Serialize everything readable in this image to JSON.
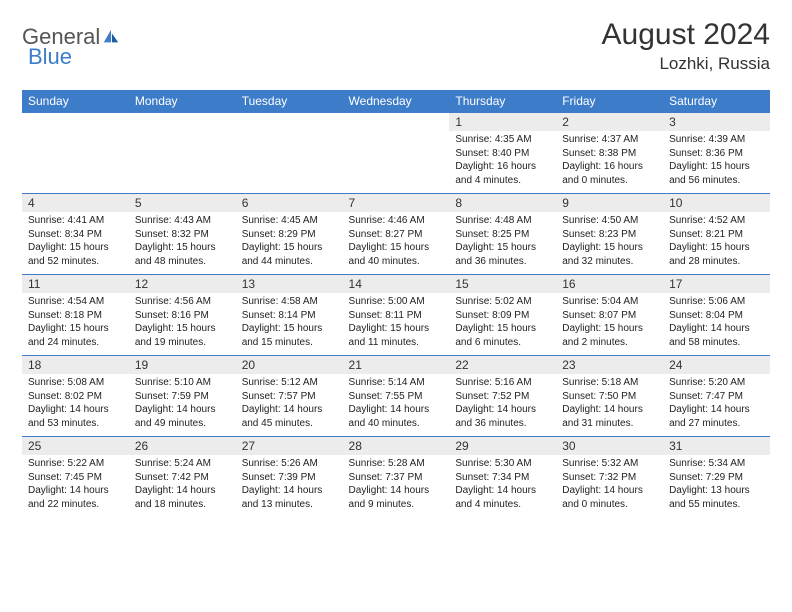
{
  "brand": {
    "name1": "General",
    "name2": "Blue"
  },
  "title": "August 2024",
  "location": "Lozhki, Russia",
  "colors": {
    "header_bg": "#3d7cc9",
    "header_text": "#ffffff",
    "daynum_bg": "#ececec",
    "border": "#3d7cc9",
    "text": "#222222",
    "brand_gray": "#555555",
    "brand_blue": "#3d7cc9"
  },
  "fonts": {
    "title_size": 30,
    "location_size": 17,
    "header_size": 12,
    "body_size": 10
  },
  "day_headers": [
    "Sunday",
    "Monday",
    "Tuesday",
    "Wednesday",
    "Thursday",
    "Friday",
    "Saturday"
  ],
  "weeks": [
    [
      null,
      null,
      null,
      null,
      {
        "n": "1",
        "sr": "Sunrise: 4:35 AM",
        "ss": "Sunset: 8:40 PM",
        "dl": "Daylight: 16 hours and 4 minutes."
      },
      {
        "n": "2",
        "sr": "Sunrise: 4:37 AM",
        "ss": "Sunset: 8:38 PM",
        "dl": "Daylight: 16 hours and 0 minutes."
      },
      {
        "n": "3",
        "sr": "Sunrise: 4:39 AM",
        "ss": "Sunset: 8:36 PM",
        "dl": "Daylight: 15 hours and 56 minutes."
      }
    ],
    [
      {
        "n": "4",
        "sr": "Sunrise: 4:41 AM",
        "ss": "Sunset: 8:34 PM",
        "dl": "Daylight: 15 hours and 52 minutes."
      },
      {
        "n": "5",
        "sr": "Sunrise: 4:43 AM",
        "ss": "Sunset: 8:32 PM",
        "dl": "Daylight: 15 hours and 48 minutes."
      },
      {
        "n": "6",
        "sr": "Sunrise: 4:45 AM",
        "ss": "Sunset: 8:29 PM",
        "dl": "Daylight: 15 hours and 44 minutes."
      },
      {
        "n": "7",
        "sr": "Sunrise: 4:46 AM",
        "ss": "Sunset: 8:27 PM",
        "dl": "Daylight: 15 hours and 40 minutes."
      },
      {
        "n": "8",
        "sr": "Sunrise: 4:48 AM",
        "ss": "Sunset: 8:25 PM",
        "dl": "Daylight: 15 hours and 36 minutes."
      },
      {
        "n": "9",
        "sr": "Sunrise: 4:50 AM",
        "ss": "Sunset: 8:23 PM",
        "dl": "Daylight: 15 hours and 32 minutes."
      },
      {
        "n": "10",
        "sr": "Sunrise: 4:52 AM",
        "ss": "Sunset: 8:21 PM",
        "dl": "Daylight: 15 hours and 28 minutes."
      }
    ],
    [
      {
        "n": "11",
        "sr": "Sunrise: 4:54 AM",
        "ss": "Sunset: 8:18 PM",
        "dl": "Daylight: 15 hours and 24 minutes."
      },
      {
        "n": "12",
        "sr": "Sunrise: 4:56 AM",
        "ss": "Sunset: 8:16 PM",
        "dl": "Daylight: 15 hours and 19 minutes."
      },
      {
        "n": "13",
        "sr": "Sunrise: 4:58 AM",
        "ss": "Sunset: 8:14 PM",
        "dl": "Daylight: 15 hours and 15 minutes."
      },
      {
        "n": "14",
        "sr": "Sunrise: 5:00 AM",
        "ss": "Sunset: 8:11 PM",
        "dl": "Daylight: 15 hours and 11 minutes."
      },
      {
        "n": "15",
        "sr": "Sunrise: 5:02 AM",
        "ss": "Sunset: 8:09 PM",
        "dl": "Daylight: 15 hours and 6 minutes."
      },
      {
        "n": "16",
        "sr": "Sunrise: 5:04 AM",
        "ss": "Sunset: 8:07 PM",
        "dl": "Daylight: 15 hours and 2 minutes."
      },
      {
        "n": "17",
        "sr": "Sunrise: 5:06 AM",
        "ss": "Sunset: 8:04 PM",
        "dl": "Daylight: 14 hours and 58 minutes."
      }
    ],
    [
      {
        "n": "18",
        "sr": "Sunrise: 5:08 AM",
        "ss": "Sunset: 8:02 PM",
        "dl": "Daylight: 14 hours and 53 minutes."
      },
      {
        "n": "19",
        "sr": "Sunrise: 5:10 AM",
        "ss": "Sunset: 7:59 PM",
        "dl": "Daylight: 14 hours and 49 minutes."
      },
      {
        "n": "20",
        "sr": "Sunrise: 5:12 AM",
        "ss": "Sunset: 7:57 PM",
        "dl": "Daylight: 14 hours and 45 minutes."
      },
      {
        "n": "21",
        "sr": "Sunrise: 5:14 AM",
        "ss": "Sunset: 7:55 PM",
        "dl": "Daylight: 14 hours and 40 minutes."
      },
      {
        "n": "22",
        "sr": "Sunrise: 5:16 AM",
        "ss": "Sunset: 7:52 PM",
        "dl": "Daylight: 14 hours and 36 minutes."
      },
      {
        "n": "23",
        "sr": "Sunrise: 5:18 AM",
        "ss": "Sunset: 7:50 PM",
        "dl": "Daylight: 14 hours and 31 minutes."
      },
      {
        "n": "24",
        "sr": "Sunrise: 5:20 AM",
        "ss": "Sunset: 7:47 PM",
        "dl": "Daylight: 14 hours and 27 minutes."
      }
    ],
    [
      {
        "n": "25",
        "sr": "Sunrise: 5:22 AM",
        "ss": "Sunset: 7:45 PM",
        "dl": "Daylight: 14 hours and 22 minutes."
      },
      {
        "n": "26",
        "sr": "Sunrise: 5:24 AM",
        "ss": "Sunset: 7:42 PM",
        "dl": "Daylight: 14 hours and 18 minutes."
      },
      {
        "n": "27",
        "sr": "Sunrise: 5:26 AM",
        "ss": "Sunset: 7:39 PM",
        "dl": "Daylight: 14 hours and 13 minutes."
      },
      {
        "n": "28",
        "sr": "Sunrise: 5:28 AM",
        "ss": "Sunset: 7:37 PM",
        "dl": "Daylight: 14 hours and 9 minutes."
      },
      {
        "n": "29",
        "sr": "Sunrise: 5:30 AM",
        "ss": "Sunset: 7:34 PM",
        "dl": "Daylight: 14 hours and 4 minutes."
      },
      {
        "n": "30",
        "sr": "Sunrise: 5:32 AM",
        "ss": "Sunset: 7:32 PM",
        "dl": "Daylight: 14 hours and 0 minutes."
      },
      {
        "n": "31",
        "sr": "Sunrise: 5:34 AM",
        "ss": "Sunset: 7:29 PM",
        "dl": "Daylight: 13 hours and 55 minutes."
      }
    ]
  ]
}
